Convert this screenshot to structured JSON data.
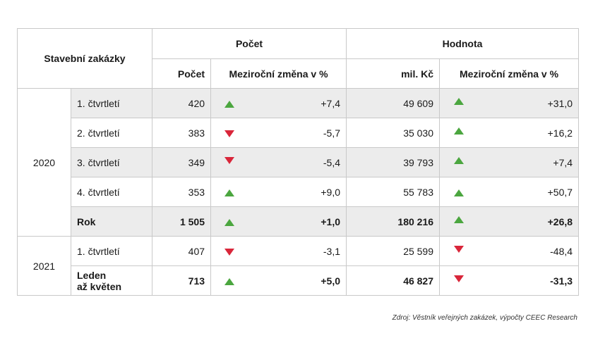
{
  "header": {
    "corner": "Stavební zakázky",
    "group_count": "Počet",
    "group_value": "Hodnota",
    "sub_count": "Počet",
    "sub_count_change": "Meziroční změna v %",
    "sub_value": "mil. Kč",
    "sub_value_change": "Meziroční změna v %"
  },
  "groups": [
    {
      "year": "2020",
      "rows": [
        {
          "period": "1. čtvrtletí",
          "count": "420",
          "count_dir": "up",
          "count_change": "+7,4",
          "value": "49 609",
          "value_dir": "up",
          "value_change": "+31,0",
          "shaded": true,
          "bold": false
        },
        {
          "period": "2. čtvrtletí",
          "count": "383",
          "count_dir": "down",
          "count_change": "-5,7",
          "value": "35 030",
          "value_dir": "up",
          "value_change": "+16,2",
          "shaded": false,
          "bold": false
        },
        {
          "period": "3. čtvrtletí",
          "count": "349",
          "count_dir": "down",
          "count_change": "-5,4",
          "value": "39 793",
          "value_dir": "up",
          "value_change": "+7,4",
          "shaded": true,
          "bold": false
        },
        {
          "period": "4. čtvrtletí",
          "count": "353",
          "count_dir": "up",
          "count_change": "+9,0",
          "value": "55 783",
          "value_dir": "up",
          "value_change": "+50,7",
          "shaded": false,
          "bold": false
        },
        {
          "period": "Rok",
          "count": "1 505",
          "count_dir": "up",
          "count_change": "+1,0",
          "value": "180 216",
          "value_dir": "up",
          "value_change": "+26,8",
          "shaded": true,
          "bold": true
        }
      ]
    },
    {
      "year": "2021",
      "rows": [
        {
          "period": "1. čtvrtletí",
          "count": "407",
          "count_dir": "down",
          "count_change": "-3,1",
          "value": "25 599",
          "value_dir": "down",
          "value_change": "-48,4",
          "shaded": false,
          "bold": false
        },
        {
          "period": "Leden\naž květen",
          "period_line1": "Leden",
          "period_line2": "až květen",
          "count": "713",
          "count_dir": "up",
          "count_change": "+5,0",
          "value": "46 827",
          "value_dir": "down",
          "value_change": "-31,3",
          "shaded": false,
          "bold": true
        }
      ]
    }
  ],
  "source": "Zdroj: Věstník veřejných zakázek, výpočty CEEC Research",
  "colors": {
    "up": "#4ba63f",
    "down": "#d9263a",
    "shade": "#ececec",
    "border": "#c9c9c9"
  }
}
